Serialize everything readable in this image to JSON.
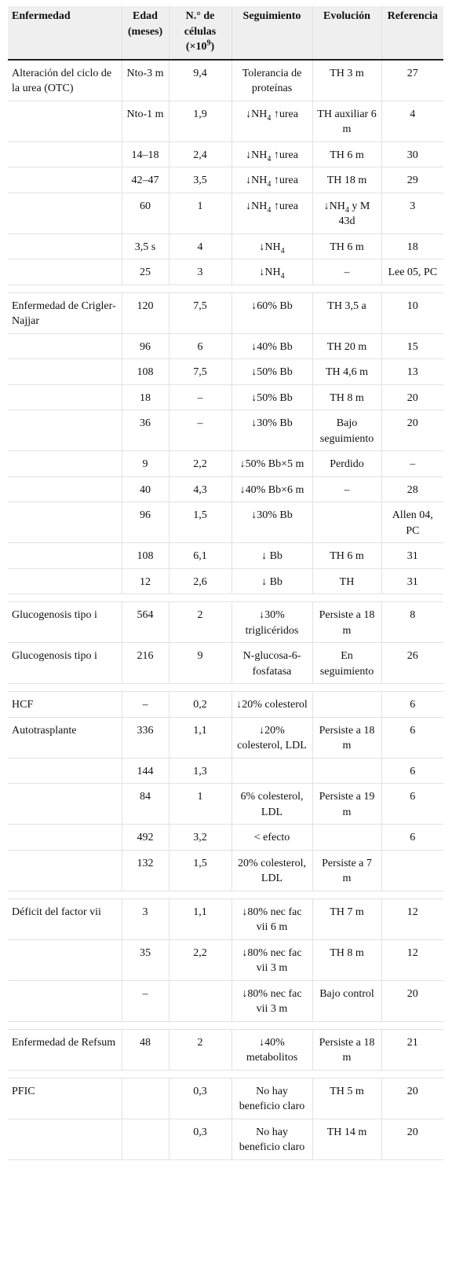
{
  "table": {
    "header": [
      "Enfermedad",
      "Edad (meses)",
      [
        "N.° de células (×10",
        {
          "sup": "9"
        },
        ")"
      ],
      "Seguimiento",
      "Evolución",
      "Referencia"
    ],
    "groups": [
      {
        "rows": [
          [
            "Alteración del ciclo de la urea (OTC)",
            "Nto-3 m",
            "9,4",
            "Tolerancia de proteínas",
            "TH 3 m",
            "27"
          ],
          [
            null,
            "Nto-1 m",
            "1,9",
            [
              "↓NH",
              {
                "sub": "4"
              },
              " ↑urea"
            ],
            "TH auxiliar 6 m",
            "4"
          ],
          [
            null,
            "14–18",
            "2,4",
            [
              "↓NH",
              {
                "sub": "4"
              },
              " ↑urea"
            ],
            "TH 6 m",
            "30"
          ],
          [
            null,
            "42–47",
            "3,5",
            [
              "↓NH",
              {
                "sub": "4"
              },
              " ↑urea"
            ],
            "TH 18 m",
            "29"
          ],
          [
            null,
            "60",
            "1",
            [
              "↓NH",
              {
                "sub": "4"
              },
              " ↑urea"
            ],
            [
              "↓NH",
              {
                "sub": "4"
              },
              " y M 43d"
            ],
            "3"
          ],
          [
            null,
            "3,5 s",
            "4",
            [
              "↓NH",
              {
                "sub": "4"
              }
            ],
            "TH 6 m",
            "18"
          ],
          [
            null,
            "25",
            "3",
            [
              "↓NH",
              {
                "sub": "4"
              }
            ],
            "–",
            "Lee 05, PC"
          ]
        ]
      },
      {
        "rows": [
          [
            "Enfermedad de Crigler-Najjar",
            "120",
            "7,5",
            "↓60% Bb",
            "TH 3,5 a",
            "10"
          ],
          [
            null,
            "96",
            "6",
            "↓40% Bb",
            "TH 20 m",
            "15"
          ],
          [
            null,
            "108",
            "7,5",
            "↓50% Bb",
            "TH 4,6 m",
            "13"
          ],
          [
            null,
            "18",
            "–",
            "↓50% Bb",
            "TH 8 m",
            "20"
          ],
          [
            null,
            "36",
            "–",
            "↓30% Bb",
            "Bajo seguimiento",
            "20"
          ],
          [
            null,
            "9",
            "2,2",
            "↓50% Bb×5 m",
            "Perdido",
            "–"
          ],
          [
            null,
            "40",
            "4,3",
            "↓40% Bb×6 m",
            "–",
            "28"
          ],
          [
            null,
            "96",
            "1,5",
            "↓30% Bb",
            null,
            "Allen 04, PC"
          ],
          [
            null,
            "108",
            "6,1",
            "↓ Bb",
            "TH 6 m",
            "31"
          ],
          [
            null,
            "12",
            "2,6",
            "↓ Bb",
            "TH",
            "31"
          ]
        ]
      },
      {
        "rows": [
          [
            "Glucogenosis tipo i",
            "564",
            "2",
            "↓30% triglicéridos",
            "Persiste a 18 m",
            "8"
          ],
          [
            "Glucogenosis tipo i",
            "216",
            "9",
            "N-glucosa-6-fosfatasa",
            "En seguimiento",
            "26"
          ]
        ]
      },
      {
        "rows": [
          [
            "HCF",
            "–",
            "0,2",
            "↓20% colesterol",
            null,
            "6"
          ],
          [
            "Autotrasplante",
            "336",
            "1,1",
            "↓20% colesterol, LDL",
            "Persiste a 18 m",
            "6"
          ],
          [
            null,
            "144",
            "1,3",
            null,
            null,
            "6"
          ],
          [
            null,
            "84",
            "1",
            "6% colesterol, LDL",
            "Persiste a 19 m",
            "6"
          ],
          [
            null,
            "492",
            "3,2",
            "< efecto",
            null,
            "6"
          ],
          [
            null,
            "132",
            "1,5",
            "20% colesterol, LDL",
            "Persiste a 7 m",
            null
          ]
        ]
      },
      {
        "rows": [
          [
            "Déficit del factor vii",
            "3",
            "1,1",
            "↓80% nec fac vii 6 m",
            "TH 7 m",
            "12"
          ],
          [
            null,
            "35",
            "2,2",
            "↓80% nec fac vii 3 m",
            "TH 8 m",
            "12"
          ],
          [
            null,
            "–",
            null,
            "↓80% nec fac vii 3 m",
            "Bajo control",
            "20"
          ]
        ]
      },
      {
        "rows": [
          [
            "Enfermedad de Refsum",
            "48",
            "2",
            "↓40% metabolitos",
            "Persiste a 18 m",
            "21"
          ]
        ]
      },
      {
        "rows": [
          [
            "PFIC",
            null,
            "0,3",
            "No hay beneficio claro",
            "TH 5 m",
            "20"
          ],
          [
            null,
            null,
            "0,3",
            "No hay beneficio claro",
            "TH 14 m",
            "20"
          ]
        ]
      }
    ]
  }
}
